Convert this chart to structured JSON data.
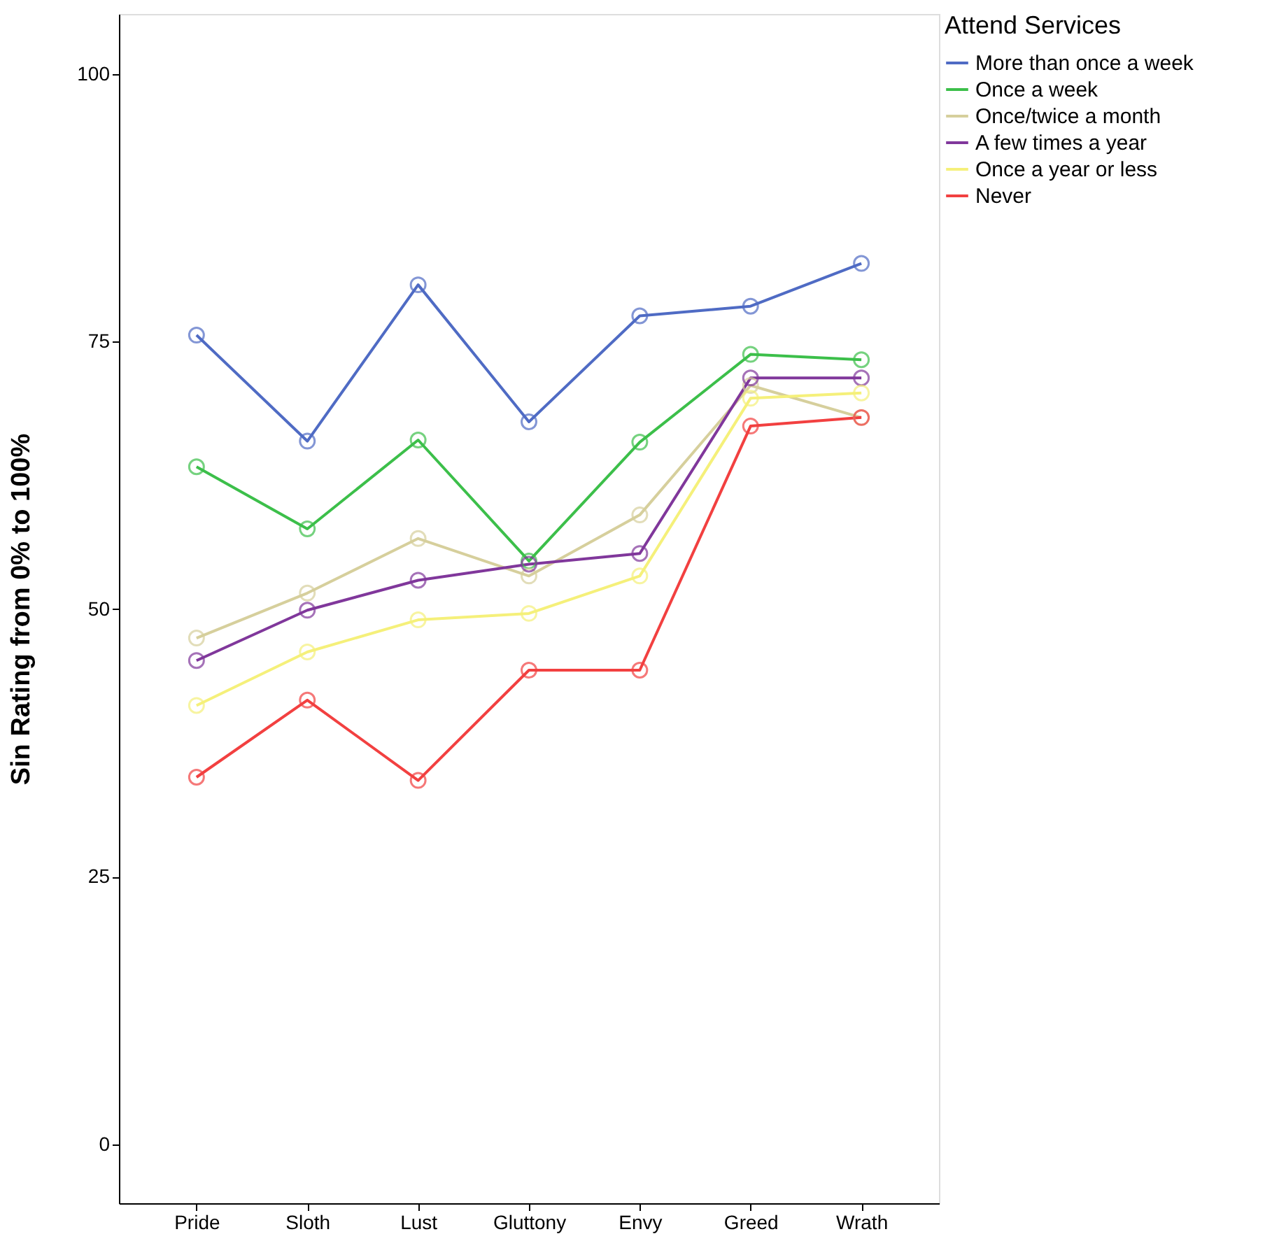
{
  "chart_data": {
    "type": "line",
    "ylabel": "Sin Rating from 0% to 100%",
    "legend_title": "Attend Services",
    "legend": "top right",
    "marker": "circle",
    "grid": false,
    "categories": [
      "Pride",
      "Sloth",
      "Lust",
      "Gluttony",
      "Envy",
      "Greed",
      "Wrath"
    ],
    "ylim": [
      -5.5,
      105.6
    ],
    "yticks": [
      0,
      25,
      50,
      75,
      100
    ],
    "series": [
      {
        "name": "More than once a week",
        "color": "#4f6bc4",
        "values": [
          75.6,
          65.7,
          80.3,
          67.5,
          77.4,
          78.3,
          82.3
        ]
      },
      {
        "name": "Once a week",
        "color": "#3cbf4a",
        "values": [
          63.3,
          57.5,
          65.8,
          54.5,
          65.6,
          73.8,
          73.3
        ]
      },
      {
        "name": "Once/twice a month",
        "color": "#d6cf9c",
        "values": [
          47.3,
          51.5,
          56.6,
          53.1,
          58.8,
          70.9,
          67.9
        ]
      },
      {
        "name": "A few times a year",
        "color": "#80379b",
        "values": [
          45.2,
          49.9,
          52.7,
          54.2,
          55.2,
          71.6,
          71.6
        ]
      },
      {
        "name": "Once a year or less",
        "color": "#f5f07a",
        "values": [
          41.0,
          46.0,
          49.0,
          49.6,
          53.1,
          69.7,
          70.2
        ]
      },
      {
        "name": "Never",
        "color": "#f24040",
        "values": [
          34.3,
          41.5,
          34.0,
          44.3,
          44.3,
          67.1,
          67.9
        ]
      }
    ]
  }
}
